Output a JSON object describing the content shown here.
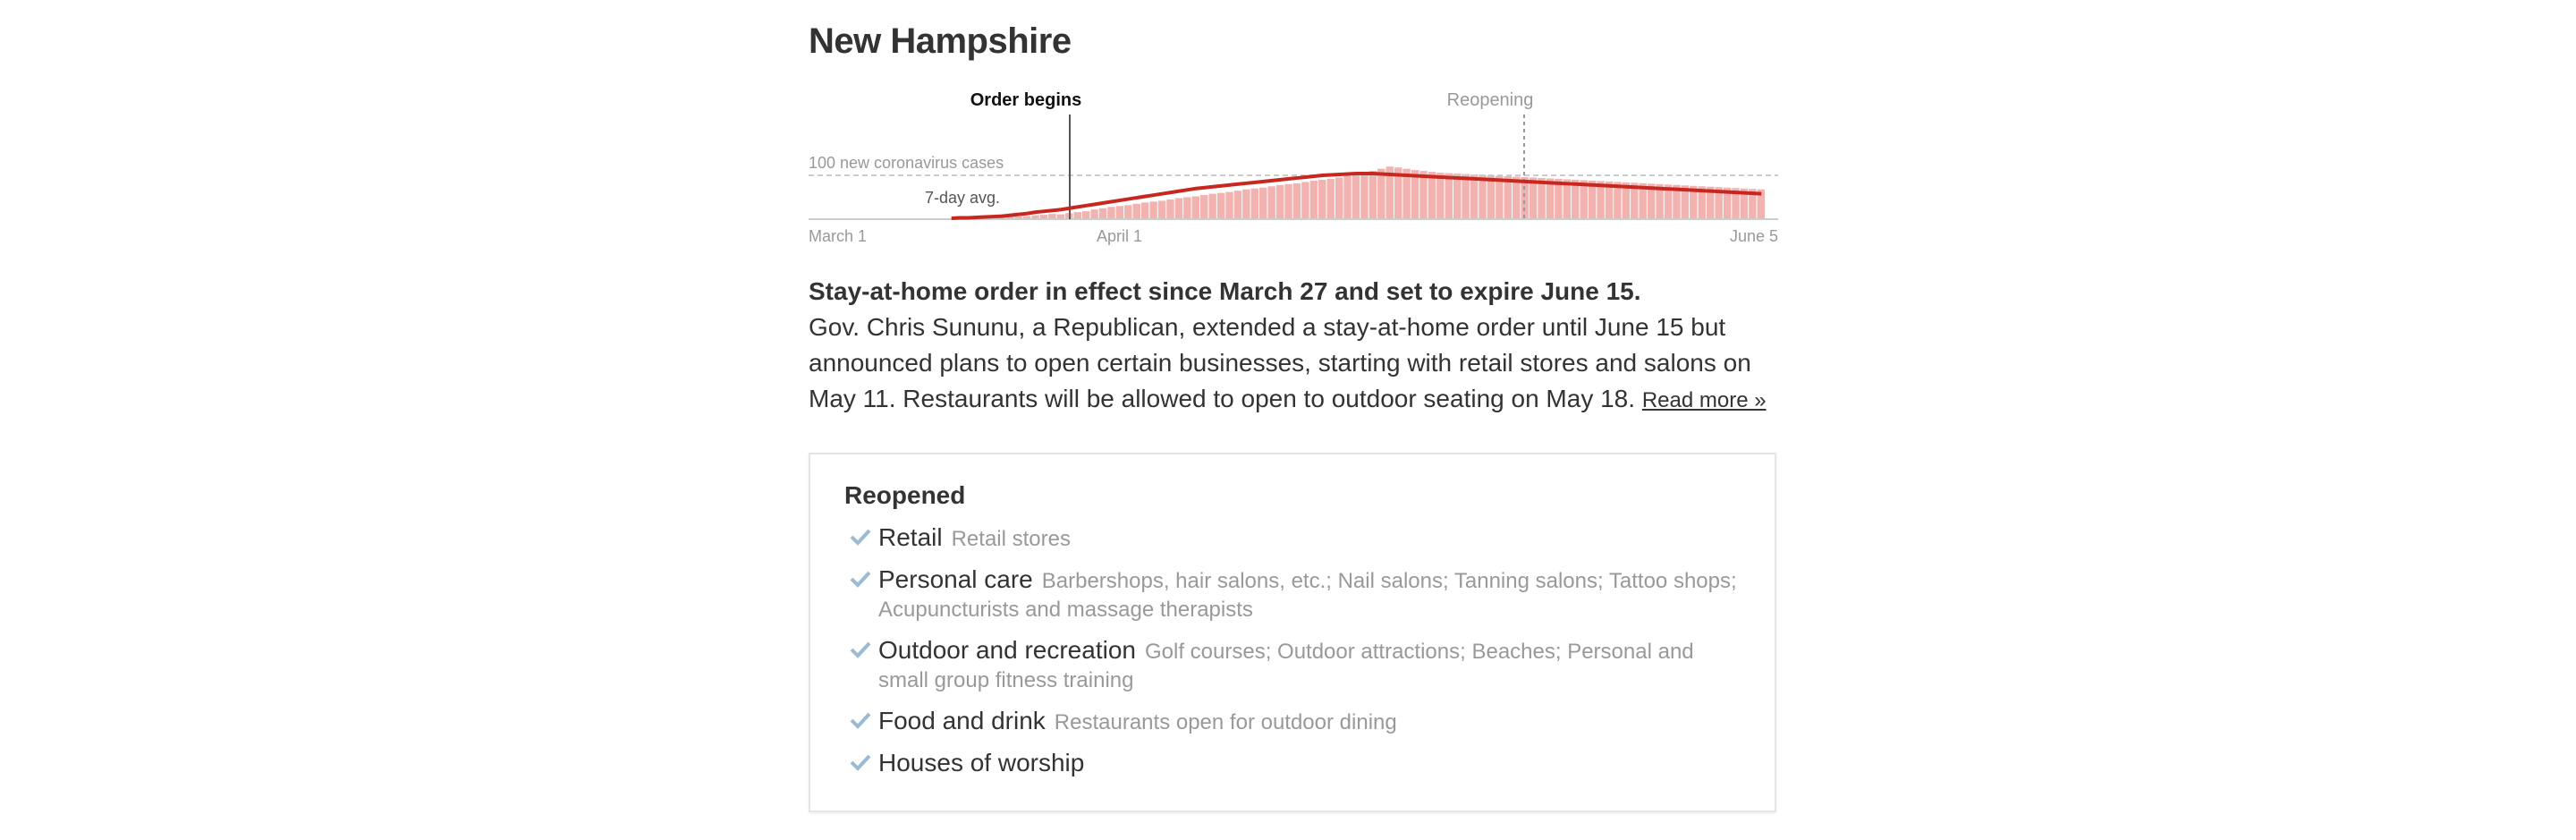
{
  "state": {
    "title": "New Hampshire"
  },
  "chart_data": {
    "type": "bar",
    "title": "New Hampshire",
    "x_start": "March 1",
    "x_end": "June 5",
    "tick_labels": [
      "March 1",
      "April 1",
      "June 5"
    ],
    "ylim": [
      0,
      150
    ],
    "reference_line": {
      "value": 100,
      "label": "100 new coronavirus cases"
    },
    "avg_label": "7-day avg.",
    "annotations": [
      {
        "label": "Order begins",
        "date": "March 27"
      },
      {
        "label": "Reopening",
        "date": "May 11"
      }
    ],
    "colors": {
      "bars": "#f2b3b0",
      "avg_line": "#c8271f",
      "order_line": "#555555",
      "reopen_line": "#999999",
      "grid": "#cccccc"
    },
    "series": [
      {
        "values": [
          2,
          3,
          2,
          3,
          4,
          4,
          5,
          5,
          6,
          7,
          9,
          10,
          12,
          11,
          14,
          16,
          18,
          22,
          25,
          28,
          30,
          32,
          35,
          38,
          40,
          42,
          45,
          48,
          50,
          52,
          55,
          58,
          60,
          62,
          65,
          68,
          70,
          72,
          75,
          78,
          80,
          82,
          85,
          88,
          90,
          92,
          95,
          98,
          100,
          105,
          110,
          115,
          120,
          118,
          115,
          112,
          110,
          108,
          106,
          105,
          104,
          103,
          102,
          101,
          100,
          99,
          98,
          97,
          96,
          95,
          94,
          93,
          92,
          91,
          90,
          89,
          88,
          87,
          86,
          85,
          84,
          83,
          82,
          81,
          80,
          79,
          78,
          77,
          76,
          75,
          74,
          73,
          72,
          71,
          70,
          69,
          68
        ]
      }
    ],
    "rolling_avg": [
      2,
      3,
      3,
      4,
      5,
      6,
      7,
      9,
      11,
      13,
      16,
      18,
      20,
      22,
      25,
      28,
      31,
      34,
      37,
      40,
      43,
      46,
      49,
      52,
      55,
      58,
      61,
      64,
      67,
      70,
      72,
      74,
      76,
      78,
      80,
      82,
      84,
      86,
      88,
      90,
      92,
      94,
      96,
      98,
      100,
      101,
      102,
      103,
      104,
      104,
      104,
      103,
      102,
      101,
      100,
      99,
      98,
      97,
      96,
      95,
      94,
      93,
      92,
      91,
      90,
      89,
      88,
      87,
      86,
      85,
      84,
      83,
      82,
      81,
      80,
      79,
      78,
      77,
      76,
      75,
      74,
      73,
      72,
      71,
      70,
      69,
      68,
      67,
      66,
      65,
      64,
      63,
      62,
      61,
      60,
      59,
      58
    ]
  },
  "description": {
    "headline": "Stay-at-home order in effect since March 27 and set to expire June 15.",
    "body": "Gov. Chris Sununu, a Republican, extended a stay-at-home order until June 15 but announced plans to open certain businesses, starting with retail stores and salons on May 11. Restaurants will be allowed to open to outdoor seating on May 18.",
    "read_more": "Read more »"
  },
  "reopened": {
    "title": "Reopened",
    "check_color": "#9bbad3",
    "items": [
      {
        "category": "Retail",
        "details": "Retail stores"
      },
      {
        "category": "Personal care",
        "details": "Barbershops, hair salons, etc.; Nail salons; Tanning salons; Tattoo shops; Acupuncturists and massage therapists"
      },
      {
        "category": "Outdoor and recreation",
        "details": "Golf courses; Outdoor attractions; Beaches; Personal and small group fitness training"
      },
      {
        "category": "Food and drink",
        "details": "Restaurants open for outdoor dining"
      },
      {
        "category": "Houses of worship",
        "details": ""
      }
    ]
  }
}
